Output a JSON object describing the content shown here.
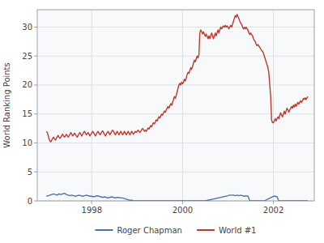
{
  "chart_data": {
    "type": "line",
    "ylabel": "World Ranking Points",
    "xlim": [
      1996.8,
      2002.9
    ],
    "xticks": [
      1998,
      2000,
      2002
    ],
    "ylim": [
      0,
      33
    ],
    "yticks": [
      0,
      5,
      10,
      15,
      20,
      25,
      30
    ],
    "grid": true,
    "legend": "bottom",
    "series": [
      {
        "name": "Roger Chapman",
        "color": "#4c72b0",
        "x": [
          1997.0,
          1997.04,
          1997.08,
          1997.12,
          1997.16,
          1997.2,
          1997.24,
          1997.28,
          1997.32,
          1997.36,
          1997.4,
          1997.44,
          1997.48,
          1997.52,
          1997.56,
          1997.6,
          1997.64,
          1997.68,
          1997.72,
          1997.76,
          1997.8,
          1997.84,
          1997.88,
          1997.92,
          1997.96,
          1998.0,
          1998.04,
          1998.08,
          1998.12,
          1998.16,
          1998.2,
          1998.24,
          1998.28,
          1998.32,
          1998.36,
          1998.4,
          1998.44,
          1998.48,
          1998.52,
          1998.56,
          1998.6,
          1998.64,
          1998.68,
          1998.72,
          1998.76,
          1998.8,
          1998.84,
          1998.88,
          1998.92,
          1998.96,
          1999.0,
          1999.5,
          2000.0,
          2000.5,
          2001.0,
          2001.04,
          2001.08,
          2001.12,
          2001.16,
          2001.2,
          2001.24,
          2001.28,
          2001.32,
          2001.36,
          2001.4,
          2001.44,
          2001.48,
          2001.6,
          2001.8,
          2002.0,
          2002.04,
          2002.08,
          2002.12,
          2002.5,
          2002.76
        ],
        "values": [
          0.8,
          0.9,
          1.0,
          1.1,
          1.2,
          1.1,
          1.0,
          1.2,
          1.1,
          1.2,
          1.3,
          1.1,
          1.0,
          0.9,
          1.0,
          0.9,
          0.8,
          0.9,
          1.0,
          0.9,
          0.8,
          0.9,
          1.0,
          0.9,
          0.8,
          0.8,
          0.7,
          0.8,
          0.9,
          0.8,
          0.7,
          0.6,
          0.7,
          0.6,
          0.5,
          0.6,
          0.7,
          0.6,
          0.5,
          0.6,
          0.6,
          0.5,
          0.5,
          0.4,
          0.3,
          0.2,
          0.1,
          0.1,
          0.0,
          0.0,
          0.0,
          0.0,
          0.0,
          0.0,
          0.9,
          1.0,
          1.0,
          1.0,
          0.9,
          1.0,
          0.9,
          1.0,
          0.9,
          0.8,
          0.9,
          0.8,
          0.0,
          0.0,
          0.0,
          0.8,
          0.8,
          0.7,
          0.0,
          0.0,
          0.0
        ]
      },
      {
        "name": "World #1",
        "color": "#c0392b",
        "x": [
          1997.0,
          1997.02,
          1997.04,
          1997.06,
          1997.08,
          1997.1,
          1997.12,
          1997.14,
          1997.16,
          1997.18,
          1997.2,
          1997.22,
          1997.24,
          1997.26,
          1997.28,
          1997.3,
          1997.32,
          1997.34,
          1997.36,
          1997.38,
          1997.4,
          1997.42,
          1997.44,
          1997.46,
          1997.48,
          1997.5,
          1997.52,
          1997.54,
          1997.56,
          1997.58,
          1997.6,
          1997.62,
          1997.64,
          1997.66,
          1997.68,
          1997.7,
          1997.72,
          1997.74,
          1997.76,
          1997.78,
          1997.8,
          1997.82,
          1997.84,
          1997.86,
          1997.88,
          1997.9,
          1997.92,
          1997.94,
          1997.96,
          1997.98,
          1998.0,
          1998.02,
          1998.04,
          1998.06,
          1998.08,
          1998.1,
          1998.12,
          1998.14,
          1998.16,
          1998.18,
          1998.2,
          1998.22,
          1998.24,
          1998.26,
          1998.28,
          1998.3,
          1998.32,
          1998.34,
          1998.36,
          1998.38,
          1998.4,
          1998.42,
          1998.44,
          1998.46,
          1998.48,
          1998.5,
          1998.52,
          1998.54,
          1998.56,
          1998.58,
          1998.6,
          1998.62,
          1998.64,
          1998.66,
          1998.68,
          1998.7,
          1998.72,
          1998.74,
          1998.76,
          1998.78,
          1998.8,
          1998.82,
          1998.84,
          1998.86,
          1998.88,
          1998.9,
          1998.92,
          1998.94,
          1998.96,
          1998.98,
          1999.0,
          1999.02,
          1999.04,
          1999.06,
          1999.08,
          1999.1,
          1999.12,
          1999.14,
          1999.16,
          1999.18,
          1999.2,
          1999.22,
          1999.24,
          1999.26,
          1999.28,
          1999.3,
          1999.32,
          1999.34,
          1999.36,
          1999.38,
          1999.4,
          1999.42,
          1999.44,
          1999.46,
          1999.48,
          1999.5,
          1999.52,
          1999.54,
          1999.56,
          1999.58,
          1999.6,
          1999.62,
          1999.64,
          1999.66,
          1999.68,
          1999.7,
          1999.72,
          1999.74,
          1999.76,
          1999.78,
          1999.8,
          1999.82,
          1999.84,
          1999.86,
          1999.88,
          1999.9,
          1999.92,
          1999.94,
          1999.96,
          1999.98,
          2000.0,
          2000.02,
          2000.04,
          2000.06,
          2000.08,
          2000.1,
          2000.12,
          2000.14,
          2000.16,
          2000.18,
          2000.2,
          2000.22,
          2000.24,
          2000.26,
          2000.28,
          2000.3,
          2000.32,
          2000.34,
          2000.36,
          2000.38,
          2000.4,
          2000.42,
          2000.44,
          2000.46,
          2000.48,
          2000.5,
          2000.52,
          2000.54,
          2000.56,
          2000.58,
          2000.6,
          2000.62,
          2000.64,
          2000.66,
          2000.68,
          2000.7,
          2000.72,
          2000.74,
          2000.76,
          2000.78,
          2000.8,
          2000.82,
          2000.84,
          2000.86,
          2000.88,
          2000.9,
          2000.92,
          2000.94,
          2000.96,
          2000.98,
          2001.0,
          2001.02,
          2001.04,
          2001.06,
          2001.08,
          2001.1,
          2001.12,
          2001.14,
          2001.16,
          2001.18,
          2001.2,
          2001.22,
          2001.24,
          2001.26,
          2001.28,
          2001.3,
          2001.32,
          2001.34,
          2001.36,
          2001.38,
          2001.4,
          2001.42,
          2001.44,
          2001.46,
          2001.48,
          2001.5,
          2001.52,
          2001.54,
          2001.56,
          2001.58,
          2001.6,
          2001.62,
          2001.64,
          2001.66,
          2001.68,
          2001.7,
          2001.72,
          2001.74,
          2001.76,
          2001.78,
          2001.8,
          2001.82,
          2001.84,
          2001.86,
          2001.88,
          2001.9,
          2001.92,
          2001.94,
          2001.96,
          2001.98,
          2002.0,
          2002.02,
          2002.04,
          2002.06,
          2002.08,
          2002.1,
          2002.12,
          2002.14,
          2002.16,
          2002.18,
          2002.2,
          2002.22,
          2002.24,
          2002.26,
          2002.28,
          2002.3,
          2002.32,
          2002.34,
          2002.36,
          2002.38,
          2002.4,
          2002.42,
          2002.44,
          2002.46,
          2002.48,
          2002.5,
          2002.52,
          2002.54,
          2002.56,
          2002.58,
          2002.6,
          2002.62,
          2002.64,
          2002.66,
          2002.68,
          2002.7,
          2002.72,
          2002.74,
          2002.76
        ],
        "values": [
          12.0,
          11.8,
          11.3,
          10.7,
          10.3,
          10.2,
          10.5,
          10.8,
          11.0,
          10.7,
          10.5,
          10.8,
          11.1,
          11.3,
          11.0,
          10.8,
          11.0,
          11.3,
          11.5,
          11.2,
          11.0,
          11.2,
          11.5,
          11.3,
          11.0,
          11.2,
          11.5,
          11.8,
          11.5,
          11.2,
          11.4,
          11.7,
          11.5,
          11.2,
          11.0,
          11.3,
          11.6,
          11.8,
          11.5,
          11.2,
          11.5,
          11.8,
          12.0,
          11.7,
          11.4,
          11.6,
          11.8,
          11.5,
          11.2,
          11.5,
          11.7,
          12.0,
          11.8,
          11.5,
          11.2,
          11.5,
          11.8,
          12.0,
          11.7,
          11.4,
          11.6,
          11.9,
          12.1,
          11.8,
          11.5,
          11.2,
          11.5,
          11.8,
          12.0,
          11.7,
          11.4,
          11.7,
          12.0,
          12.2,
          12.0,
          11.7,
          11.4,
          11.7,
          12.0,
          11.7,
          11.4,
          11.7,
          12.0,
          11.7,
          11.4,
          11.7,
          12.0,
          11.7,
          11.4,
          11.7,
          12.0,
          11.7,
          11.4,
          11.7,
          12.0,
          11.7,
          11.5,
          11.8,
          12.0,
          11.8,
          12.0,
          12.2,
          12.0,
          11.8,
          12.0,
          12.3,
          12.5,
          12.3,
          12.0,
          12.2,
          12.0,
          12.3,
          12.6,
          12.4,
          12.7,
          13.0,
          12.8,
          13.2,
          13.5,
          13.3,
          13.6,
          14.0,
          13.8,
          14.2,
          14.5,
          14.3,
          14.7,
          15.0,
          14.8,
          15.2,
          15.5,
          15.3,
          15.7,
          16.0,
          16.3,
          16.0,
          16.4,
          16.8,
          16.5,
          17.0,
          17.5,
          18.0,
          17.7,
          18.2,
          18.8,
          19.5,
          20.0,
          20.3,
          20.0,
          20.5,
          20.2,
          20.5,
          21.0,
          20.7,
          21.2,
          21.8,
          22.2,
          22.0,
          22.5,
          23.0,
          22.7,
          23.2,
          23.8,
          24.3,
          24.0,
          24.5,
          25.0,
          24.7,
          25.2,
          29.0,
          29.5,
          29.2,
          28.8,
          29.2,
          28.8,
          28.4,
          28.8,
          28.4,
          28.0,
          28.5,
          28.0,
          28.5,
          29.0,
          28.5,
          28.0,
          28.5,
          29.0,
          28.5,
          29.0,
          29.5,
          29.0,
          29.5,
          30.0,
          29.7,
          30.0,
          30.2,
          30.0,
          30.3,
          30.0,
          30.2,
          30.0,
          29.7,
          30.0,
          30.3,
          30.0,
          30.5,
          31.0,
          31.5,
          32.0,
          31.7,
          32.2,
          31.8,
          31.5,
          31.0,
          30.7,
          30.5,
          30.0,
          29.7,
          30.0,
          29.7,
          30.0,
          29.7,
          29.5,
          29.0,
          28.7,
          29.0,
          28.7,
          28.5,
          28.0,
          27.7,
          27.5,
          27.0,
          26.8,
          27.0,
          26.7,
          26.5,
          26.2,
          26.0,
          25.8,
          25.5,
          25.0,
          24.5,
          24.0,
          23.5,
          23.0,
          22.0,
          20.0,
          18.0,
          14.0,
          13.5,
          13.5,
          13.8,
          14.2,
          13.8,
          14.2,
          14.5,
          14.2,
          14.8,
          15.2,
          14.8,
          14.5,
          15.0,
          15.5,
          15.0,
          15.5,
          16.0,
          15.7,
          15.3,
          15.7,
          16.0,
          16.3,
          16.0,
          16.5,
          16.2,
          16.7,
          16.3,
          16.7,
          17.0,
          16.7,
          17.0,
          17.3,
          17.0,
          17.3,
          17.7,
          17.5,
          17.8,
          17.5,
          17.8,
          18.0
        ]
      }
    ]
  }
}
